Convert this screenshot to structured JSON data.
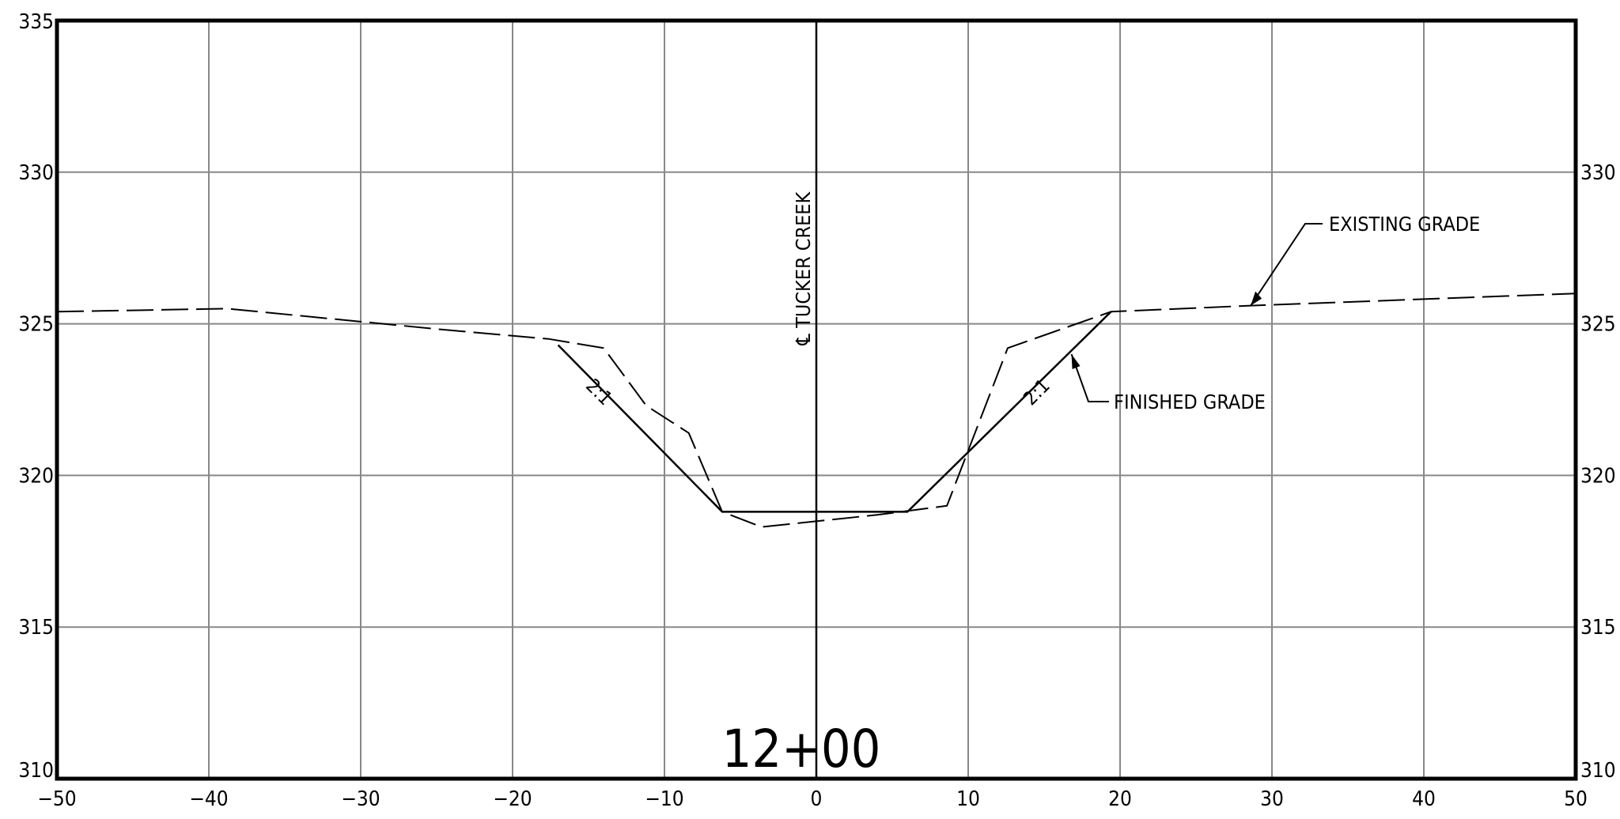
{
  "chart_data": {
    "type": "line",
    "title": "",
    "xlabel": "",
    "ylabel": "",
    "xlim": [
      -50,
      50
    ],
    "ylim": [
      310,
      335
    ],
    "grid": true,
    "x_ticks": [
      "−50",
      "−40",
      "−30",
      "−20",
      "−10",
      "0",
      "10",
      "20",
      "30",
      "40",
      "50"
    ],
    "x_tick_values": [
      -50,
      -40,
      -30,
      -20,
      -10,
      0,
      10,
      20,
      30,
      40,
      50
    ],
    "y_ticks_left": [
      "310",
      "315",
      "320",
      "325",
      "330",
      "335"
    ],
    "y_ticks_right": [
      "310",
      "315",
      "320",
      "325",
      "330"
    ],
    "y_tick_values": [
      310,
      315,
      320,
      325,
      330,
      335
    ],
    "series": [
      {
        "name": "EXISTING GRADE",
        "style": "dashed",
        "points": [
          [
            -50,
            325.4
          ],
          [
            -38.8,
            325.5
          ],
          [
            -24.4,
            324.8
          ],
          [
            -17.6,
            324.5
          ],
          [
            -14,
            324.2
          ],
          [
            -11.2,
            322.3
          ],
          [
            -8.4,
            321.4
          ],
          [
            -6.2,
            318.8
          ],
          [
            -3.6,
            318.3
          ],
          [
            4,
            318.7
          ],
          [
            8.6,
            319
          ],
          [
            12.6,
            324.2
          ],
          [
            19.4,
            325.4
          ],
          [
            28.6,
            325.6
          ],
          [
            50,
            326
          ]
        ]
      },
      {
        "name": "FINISHED GRADE",
        "style": "solid",
        "points": [
          [
            -17,
            324.3
          ],
          [
            -6.2,
            318.8
          ],
          [
            6,
            318.8
          ],
          [
            19.4,
            325.4
          ]
        ]
      }
    ],
    "centerline": {
      "x": 0,
      "label": "℄ TUCKER CREEK"
    },
    "station_label": "12+00",
    "annotations": [
      {
        "text": "EXISTING GRADE",
        "points_to": [
          28.6,
          325.6
        ]
      },
      {
        "text": "FINISHED GRADE",
        "points_to": [
          16.8,
          324
        ]
      },
      {
        "text": "2:1",
        "at": [
          -14.6,
          322.6
        ]
      },
      {
        "text": "2:1",
        "at": [
          14.8,
          322.6
        ]
      }
    ],
    "colors": {
      "line": "#000000",
      "grid": "#888888",
      "frame": "#000000"
    }
  }
}
